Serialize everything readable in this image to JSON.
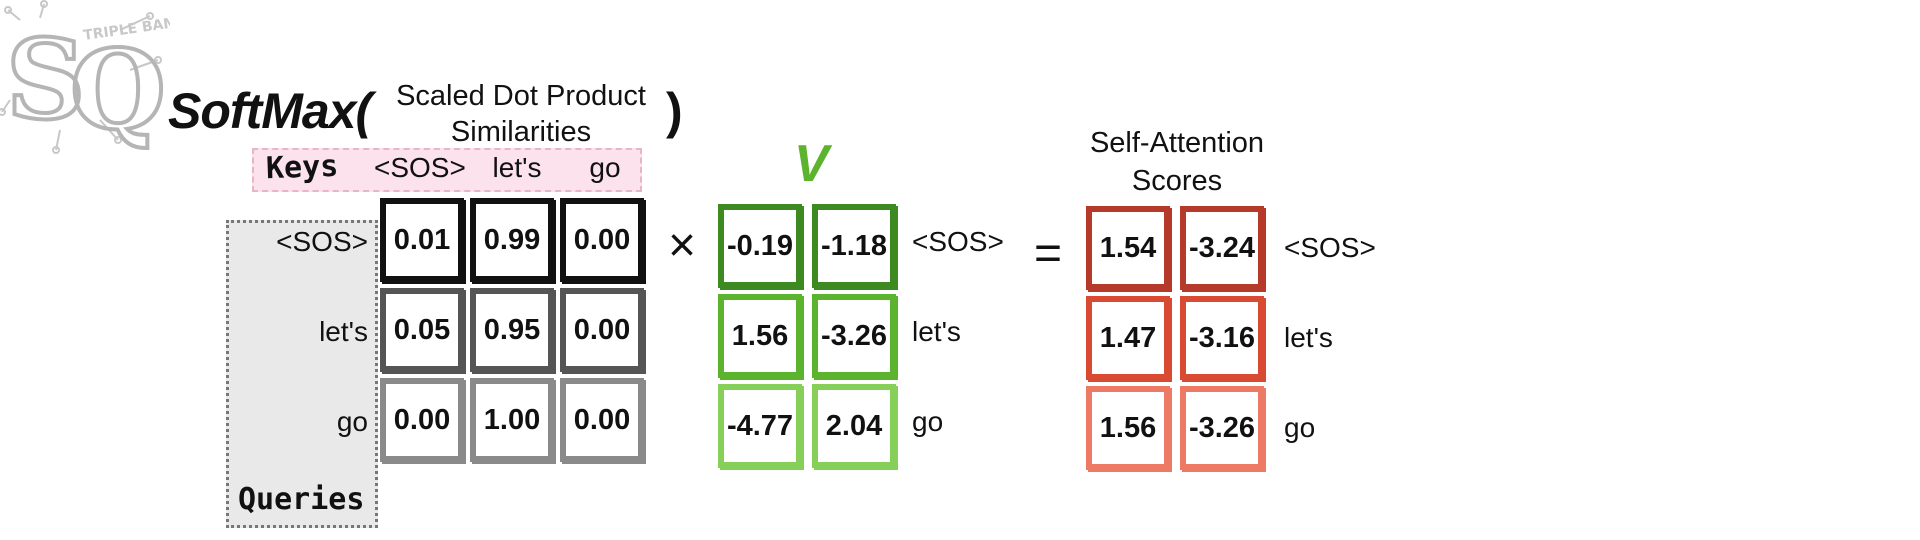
{
  "logo": {
    "letters": "SQ",
    "small_text": "TRIPLE BAM!!",
    "icon": "statquest-logo"
  },
  "formula": {
    "func": "SoftMax(",
    "inner_line1": "Scaled Dot Product",
    "inner_line2": "Similarities",
    "close": ")"
  },
  "similarities": {
    "keys_title": "Keys",
    "queries_title": "Queries",
    "col_labels": [
      "<SOS>",
      "let's",
      "go"
    ],
    "row_labels": [
      "<SOS>",
      "let's",
      "go"
    ],
    "rows": [
      [
        "0.01",
        "0.99",
        "0.00"
      ],
      [
        "0.05",
        "0.95",
        "0.00"
      ],
      [
        "0.00",
        "1.00",
        "0.00"
      ]
    ],
    "row_colors": [
      "#111111",
      "#555555",
      "#8a8a8a"
    ]
  },
  "multiply_symbol": "×",
  "values": {
    "label": "V",
    "row_labels": [
      "<SOS>",
      "let's",
      "go"
    ],
    "rows": [
      [
        "-0.19",
        "-1.18"
      ],
      [
        "1.56",
        "-3.26"
      ],
      [
        "-4.77",
        "2.04"
      ]
    ],
    "row_colors": [
      "#3d8a22",
      "#5cb32d",
      "#86d05a"
    ]
  },
  "equals_symbol": "=",
  "result": {
    "title_line1": "Self-Attention",
    "title_line2": "Scores",
    "row_labels": [
      "<SOS>",
      "let's",
      "go"
    ],
    "rows": [
      [
        "1.54",
        "-3.24"
      ],
      [
        "1.47",
        "-3.16"
      ],
      [
        "1.56",
        "-3.26"
      ]
    ],
    "row_colors": [
      "#b53a2a",
      "#d94a32",
      "#ec7a64"
    ]
  }
}
